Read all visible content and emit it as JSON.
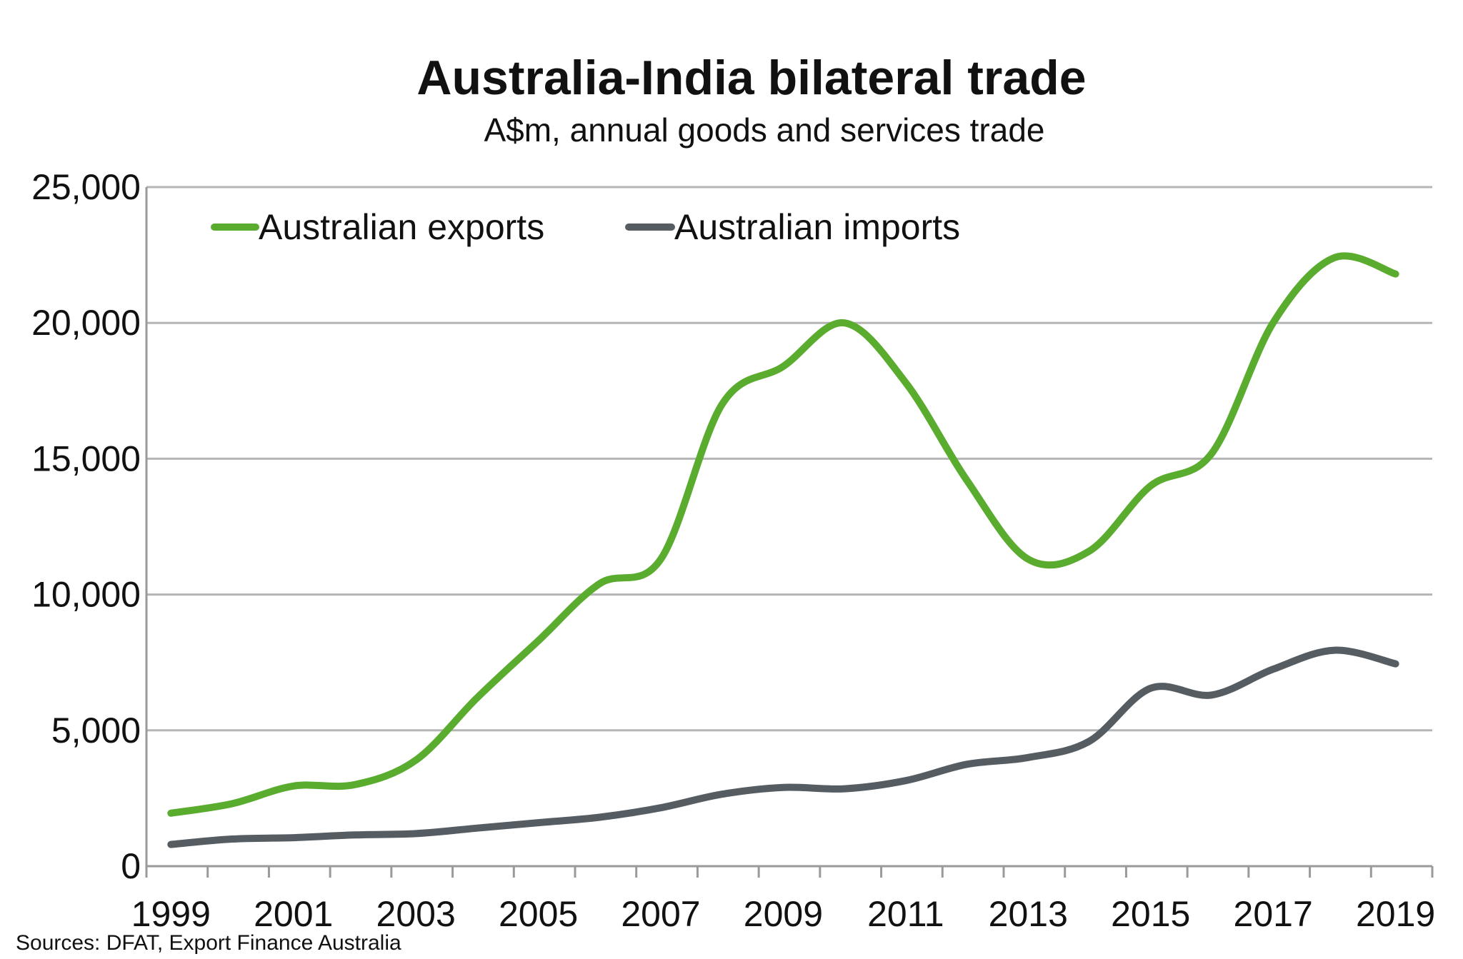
{
  "chart_data": {
    "type": "line",
    "title": "Australia-India bilateral trade",
    "subtitle": "A$m, annual goods and services trade",
    "source": "Sources: DFAT, Export Finance Australia",
    "x": [
      1999,
      2000,
      2001,
      2002,
      2003,
      2004,
      2005,
      2006,
      2007,
      2008,
      2009,
      2010,
      2011,
      2012,
      2013,
      2014,
      2015,
      2016,
      2017,
      2018,
      2019
    ],
    "x_tick_labels": [
      "1999",
      "2001",
      "2003",
      "2005",
      "2007",
      "2009",
      "2011",
      "2013",
      "2015",
      "2017",
      "2019"
    ],
    "y_tick_labels": [
      "0",
      "5,000",
      "10,000",
      "15,000",
      "20,000",
      "25,000"
    ],
    "ylim": [
      0,
      25000
    ],
    "xlim": [
      1998.6,
      2019.6
    ],
    "grid": "horizontal",
    "legend_position": "top-left",
    "series": [
      {
        "name": "Australian exports",
        "color": "#5aac2e",
        "values": [
          1950,
          2300,
          2950,
          3000,
          3900,
          6200,
          8300,
          10400,
          11300,
          17000,
          18400,
          20000,
          17800,
          14200,
          11300,
          11600,
          14000,
          15200,
          20000,
          22400,
          21800
        ]
      },
      {
        "name": "Australian imports",
        "color": "#555d63",
        "values": [
          800,
          1000,
          1050,
          1150,
          1200,
          1400,
          1600,
          1800,
          2150,
          2650,
          2900,
          2850,
          3150,
          3750,
          4000,
          4600,
          6550,
          6300,
          7250,
          7950,
          7450
        ]
      }
    ]
  }
}
